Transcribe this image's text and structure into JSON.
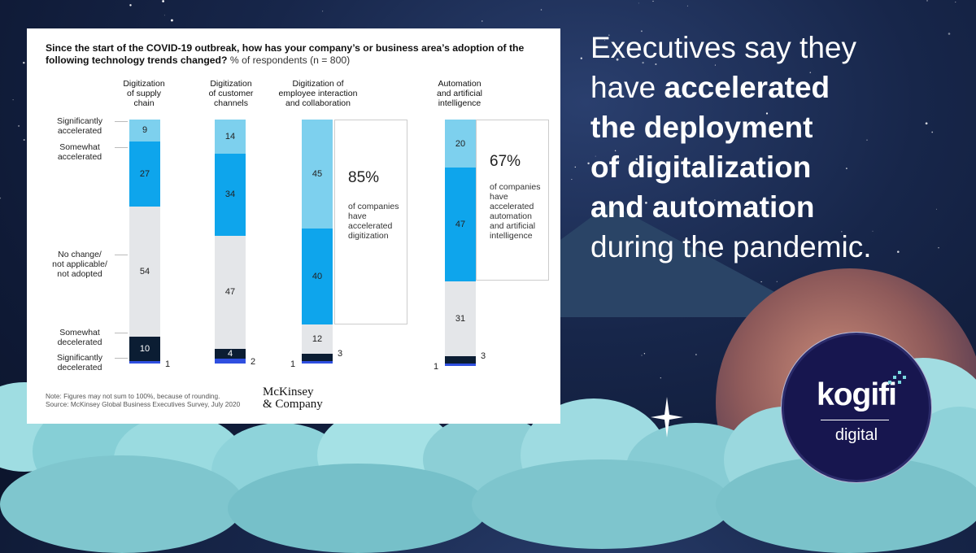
{
  "headline": {
    "line1": "Executives say they",
    "line2_plain": "have ",
    "line2_bold": "accelerated",
    "line3_bold": "the deployment",
    "line4_bold": "of digitalization",
    "line5_bold": "and automation",
    "line6": "during the pandemic."
  },
  "brand": {
    "logo": "kogifi",
    "sub": "digital"
  },
  "colors": {
    "sig_accel": "#7dd0ee",
    "some_accel": "#0ea5ec",
    "no_change": "#e4e6e9",
    "some_decel": "#0b1d33",
    "sig_decel": "#2f4fe0"
  },
  "chart_data": {
    "type": "bar",
    "title": "Since the start of the COVID-19 outbreak, how has your company’s or business area’s adoption of the following technology trends changed?",
    "subtitle": "% of respondents (n = 800)",
    "categories": [
      "Digitization of supply chain",
      "Digitization of customer channels",
      "Digitization of employee interaction and collaboration",
      "Automation and artificial intelligence"
    ],
    "category_lines": [
      [
        "Digitization",
        "of supply",
        "chain"
      ],
      [
        "Digitization",
        "of customer",
        "channels"
      ],
      [
        "Digitization of",
        "employee interaction",
        "and collaboration"
      ],
      [
        "Automation",
        "and artificial",
        "intelligence"
      ]
    ],
    "series": [
      {
        "name": "Significantly accelerated",
        "values": [
          9,
          14,
          45,
          20
        ]
      },
      {
        "name": "Somewhat accelerated",
        "values": [
          27,
          34,
          40,
          47
        ]
      },
      {
        "name": "No change/ not applicable/ not adopted",
        "values": [
          54,
          47,
          12,
          31
        ]
      },
      {
        "name": "Somewhat decelerated",
        "values": [
          10,
          4,
          3,
          3
        ]
      },
      {
        "name": "Significantly decelerated",
        "values": [
          1,
          2,
          1,
          1
        ]
      }
    ],
    "row_labels": [
      [
        "Significantly",
        "accelerated"
      ],
      [
        "Somewhat",
        "accelerated"
      ],
      [
        "No change/",
        "not applicable/",
        "not adopted"
      ],
      [
        "Somewhat",
        "decelerated"
      ],
      [
        "Significantly",
        "decelerated"
      ]
    ],
    "callouts": [
      {
        "category_index": 2,
        "pct": "85%",
        "lines": [
          "of companies",
          "have",
          "accelerated",
          "digitization"
        ]
      },
      {
        "category_index": 3,
        "pct": "67%",
        "lines": [
          "of companies",
          "have",
          "accelerated",
          "automation",
          "and artificial",
          "intelligence"
        ]
      }
    ],
    "note": "Note: Figures may not sum to 100%, because of rounding.",
    "source": "Source: McKinsey Global Business Executives Survey, July 2020",
    "publisher_line1": "McKinsey",
    "publisher_line2": "& Company"
  }
}
